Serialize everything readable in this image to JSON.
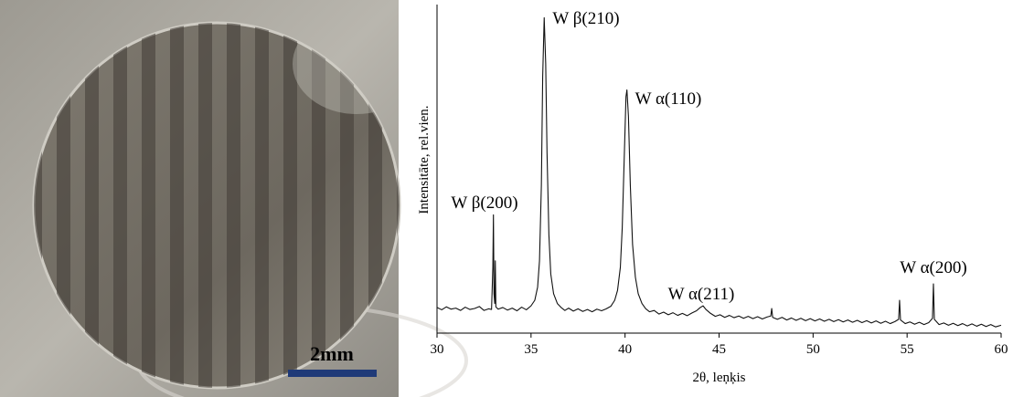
{
  "photo": {
    "scale_bar": "2mm"
  },
  "chart_data": {
    "type": "line",
    "x_label": "2θ, leņķis",
    "y_label": "Intensitāte, rel.vien.",
    "color": "#111111",
    "xlim": [
      30,
      60
    ],
    "xticks": [
      30,
      35,
      40,
      45,
      50,
      55,
      60
    ],
    "ylim": [
      0,
      100
    ],
    "annotations": [
      "W β(200)",
      "W β(210)",
      "W α(110)",
      "W α(211)",
      "W α(200)"
    ],
    "x": [
      30,
      30.25,
      30.5,
      30.75,
      31,
      31.25,
      31.5,
      31.75,
      32,
      32.25,
      32.5,
      32.75,
      32.9,
      32.97,
      33,
      33.03,
      33.07,
      33.1,
      33.13,
      33.25,
      33.5,
      33.75,
      34,
      34.25,
      34.5,
      34.75,
      35,
      35.2,
      35.35,
      35.45,
      35.55,
      35.62,
      35.7,
      35.78,
      35.85,
      35.95,
      36.05,
      36.2,
      36.4,
      36.6,
      36.8,
      37,
      37.25,
      37.5,
      37.75,
      38,
      38.25,
      38.5,
      38.75,
      39,
      39.25,
      39.45,
      39.6,
      39.75,
      39.85,
      39.95,
      40.05,
      40.1,
      40.18,
      40.28,
      40.4,
      40.55,
      40.7,
      40.9,
      41.1,
      41.3,
      41.55,
      41.8,
      42.05,
      42.3,
      42.55,
      42.8,
      43.05,
      43.3,
      43.55,
      43.8,
      44,
      44.15,
      44.3,
      44.55,
      44.8,
      45.05,
      45.3,
      45.55,
      45.8,
      46.05,
      46.3,
      46.55,
      46.8,
      47.05,
      47.3,
      47.55,
      47.75,
      47.8,
      47.85,
      48.1,
      48.35,
      48.6,
      48.85,
      49.1,
      49.35,
      49.6,
      49.85,
      50.1,
      50.35,
      50.6,
      50.85,
      51.1,
      51.35,
      51.6,
      51.85,
      52.1,
      52.35,
      52.6,
      52.85,
      53.1,
      53.35,
      53.6,
      53.85,
      54.1,
      54.35,
      54.55,
      54.6,
      54.65,
      54.9,
      55.15,
      55.4,
      55.65,
      55.9,
      56.15,
      56.35,
      56.4,
      56.45,
      56.7,
      56.95,
      57.2,
      57.45,
      57.7,
      57.95,
      58.2,
      58.45,
      58.7,
      58.95,
      59.2,
      59.45,
      59.7,
      60
    ],
    "values": [
      7.8,
      7.1,
      8.0,
      7.3,
      7.6,
      6.9,
      7.9,
      7.2,
      7.5,
      8.1,
      6.9,
      7.4,
      7.2,
      20,
      36,
      12,
      9,
      22,
      8,
      7.3,
      7.8,
      7.0,
      7.6,
      6.8,
      7.9,
      7.1,
      8.3,
      10,
      14,
      22,
      45,
      78,
      96,
      82,
      55,
      30,
      18,
      12,
      9,
      7.8,
      6.9,
      7.6,
      6.7,
      7.4,
      6.6,
      7.2,
      6.5,
      7.3,
      6.8,
      7.4,
      8.2,
      10,
      13,
      20,
      32,
      52,
      72,
      74,
      66,
      45,
      27,
      17,
      12,
      9,
      7.4,
      6.5,
      6.9,
      5.8,
      6.4,
      5.6,
      6.2,
      5.4,
      6.0,
      5.3,
      6.1,
      6.8,
      7.8,
      8.3,
      7.2,
      6.0,
      5.1,
      5.6,
      4.8,
      5.4,
      4.7,
      5.2,
      4.5,
      5.1,
      4.4,
      5.0,
      4.3,
      4.9,
      5.2,
      7.5,
      4.8,
      4.2,
      4.8,
      4.0,
      4.6,
      3.9,
      4.5,
      3.8,
      4.4,
      3.7,
      4.3,
      3.6,
      4.2,
      3.5,
      4.1,
      3.4,
      4.0,
      3.3,
      3.9,
      3.2,
      3.8,
      3.1,
      3.7,
      3.0,
      3.6,
      2.9,
      3.5,
      4.2,
      10,
      4.0,
      2.9,
      3.4,
      2.7,
      3.3,
      2.6,
      3.2,
      4.5,
      15,
      4.2,
      2.6,
      3.1,
      2.4,
      3.0,
      2.3,
      2.9,
      2.2,
      2.8,
      2.1,
      2.7,
      2.0,
      2.6,
      1.9,
      2.4
    ]
  }
}
